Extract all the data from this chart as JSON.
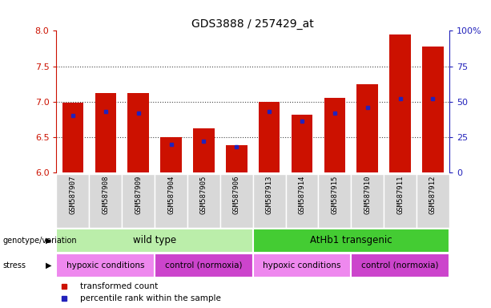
{
  "title": "GDS3888 / 257429_at",
  "samples": [
    "GSM587907",
    "GSM587908",
    "GSM587909",
    "GSM587904",
    "GSM587905",
    "GSM587906",
    "GSM587913",
    "GSM587914",
    "GSM587915",
    "GSM587910",
    "GSM587911",
    "GSM587912"
  ],
  "transformed_counts": [
    6.98,
    7.12,
    7.12,
    6.5,
    6.62,
    6.38,
    7.0,
    6.82,
    7.05,
    7.25,
    7.95,
    7.78
  ],
  "percentile_ranks": [
    40,
    43,
    42,
    20,
    22,
    18,
    43,
    36,
    42,
    46,
    52,
    52
  ],
  "ylim_left": [
    6.0,
    8.0
  ],
  "ylim_right": [
    0,
    100
  ],
  "yticks_left": [
    6.0,
    6.5,
    7.0,
    7.5,
    8.0
  ],
  "ytick_labels_right": [
    "0",
    "25",
    "50",
    "75",
    "100%"
  ],
  "bar_color": "#cc1100",
  "dot_color": "#2222bb",
  "bar_bottom": 6.0,
  "genotype_groups": [
    {
      "label": "wild type",
      "start": 0,
      "end": 6,
      "color": "#bbeeaa"
    },
    {
      "label": "AtHb1 transgenic",
      "start": 6,
      "end": 12,
      "color": "#44cc33"
    }
  ],
  "stress_groups": [
    {
      "label": "hypoxic conditions",
      "start": 0,
      "end": 3,
      "color": "#ee88ee"
    },
    {
      "label": "control (normoxia)",
      "start": 3,
      "end": 6,
      "color": "#cc44cc"
    },
    {
      "label": "hypoxic conditions",
      "start": 6,
      "end": 9,
      "color": "#ee88ee"
    },
    {
      "label": "control (normoxia)",
      "start": 9,
      "end": 12,
      "color": "#cc44cc"
    }
  ],
  "legend_items": [
    {
      "label": "transformed count",
      "color": "#cc1100"
    },
    {
      "label": "percentile rank within the sample",
      "color": "#2222bb"
    }
  ],
  "grid_color": "#444444",
  "tickbox_color": "#d8d8d8",
  "plot_bg": "#ffffff",
  "left_axis_color": "#cc1100",
  "right_axis_color": "#2222bb"
}
